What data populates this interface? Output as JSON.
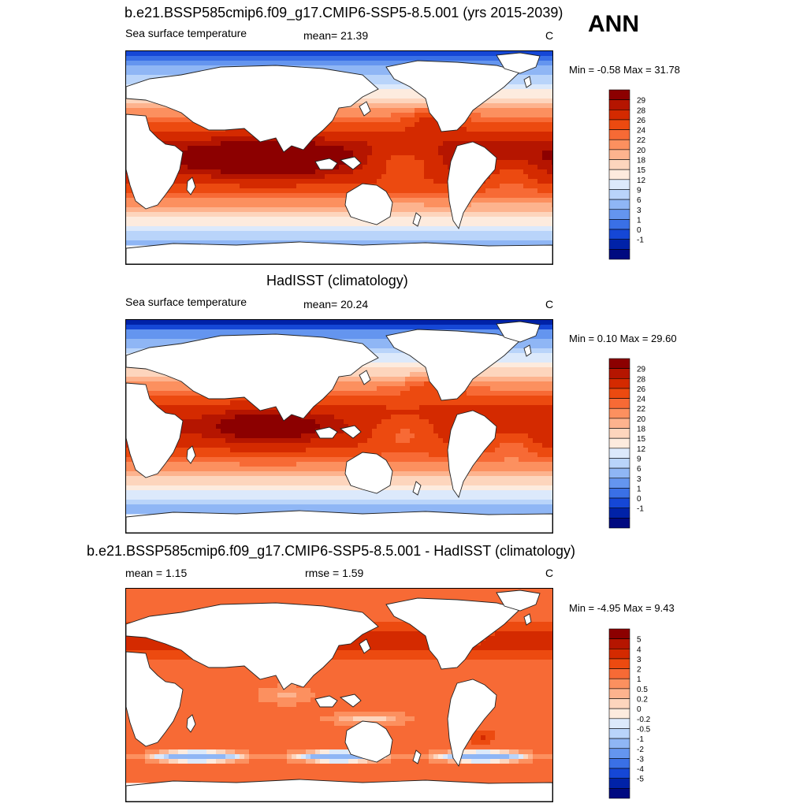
{
  "season_label": "ANN",
  "panels": [
    {
      "title": "b.e21.BSSP585cmip6.f09_g17.CMIP6-SSP5-8.5.001 (yrs 2015-2039)",
      "left_label": "Sea surface temperature",
      "center_label": "mean=  21.39",
      "units": "C",
      "minmax": "Min =  -0.58 Max =  31.78"
    },
    {
      "title": "HadISST (climatology)",
      "left_label": "Sea surface temperature",
      "center_label": "mean=  20.24",
      "units": "C",
      "minmax": "Min =   0.10 Max =  29.60"
    },
    {
      "title": "b.e21.BSSP585cmip6.f09_g17.CMIP6-SSP5-8.5.001 - HadISST (climatology)",
      "left_label": "mean =   1.15",
      "center_label": "rmse =   1.59",
      "units": "C",
      "minmax": "Min =  -4.95 Max =   9.43"
    }
  ],
  "chart_data": [
    {
      "type": "heatmap",
      "title": "b.e21.BSSP585cmip6.f09_g17.CMIP6-SSP5-8.5.001 (yrs 2015-2039)",
      "variable": "Sea surface temperature",
      "units": "C",
      "mean": 21.39,
      "min": -0.58,
      "max": 31.78,
      "colorbar_levels": [
        29,
        28,
        26,
        24,
        22,
        20,
        18,
        15,
        12,
        9,
        6,
        3,
        1,
        0,
        -1
      ],
      "colorbar_colors": [
        "#8c0000",
        "#b51500",
        "#d42a00",
        "#ec4a10",
        "#f76a35",
        "#fc905f",
        "#fdb38e",
        "#fdd5bd",
        "#fdebde",
        "#dce9fb",
        "#b9d4fa",
        "#8fb6f5",
        "#6495ef",
        "#3a70e6",
        "#1547d6",
        "#0022a8",
        "#000a80"
      ],
      "grid": {
        "lat_range": [
          -90,
          90
        ],
        "lon_range": [
          30,
          390
        ],
        "values": []
      }
    },
    {
      "type": "heatmap",
      "title": "HadISST (climatology)",
      "variable": "Sea surface temperature",
      "units": "C",
      "mean": 20.24,
      "min": 0.1,
      "max": 29.6,
      "colorbar_levels": [
        29,
        28,
        26,
        24,
        22,
        20,
        18,
        15,
        12,
        9,
        6,
        3,
        1,
        0,
        -1
      ],
      "colorbar_colors": [
        "#8c0000",
        "#b51500",
        "#d42a00",
        "#ec4a10",
        "#f76a35",
        "#fc905f",
        "#fdb38e",
        "#fdd5bd",
        "#fdebde",
        "#dce9fb",
        "#b9d4fa",
        "#8fb6f5",
        "#6495ef",
        "#3a70e6",
        "#1547d6",
        "#0022a8",
        "#000a80"
      ],
      "grid": {
        "lat_range": [
          -90,
          90
        ],
        "lon_range": [
          30,
          390
        ],
        "values": []
      }
    },
    {
      "type": "heatmap",
      "title": "b.e21.BSSP585cmip6.f09_g17.CMIP6-SSP5-8.5.001 - HadISST (climatology)",
      "units": "C",
      "mean": 1.15,
      "rmse": 1.59,
      "min": -4.95,
      "max": 9.43,
      "colorbar_levels": [
        5,
        4,
        3,
        2,
        1,
        0.5,
        0.2,
        0,
        -0.2,
        -0.5,
        -1,
        -2,
        -3,
        -4,
        -5
      ],
      "colorbar_colors": [
        "#8c0000",
        "#b51500",
        "#d42a00",
        "#ec4a10",
        "#f76a35",
        "#fc905f",
        "#fdb38e",
        "#fdd5bd",
        "#fdebde",
        "#dce9fb",
        "#b9d4fa",
        "#8fb6f5",
        "#6495ef",
        "#3a70e6",
        "#1547d6",
        "#0022a8",
        "#000a80"
      ],
      "grid": {
        "lat_range": [
          -90,
          90
        ],
        "lon_range": [
          30,
          390
        ],
        "values": []
      }
    }
  ]
}
